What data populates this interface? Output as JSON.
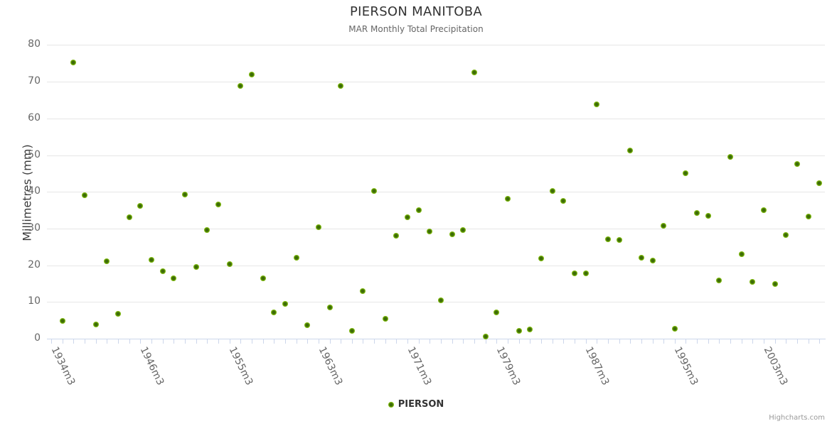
{
  "header": {
    "title": "PIERSON MANITOBA",
    "subtitle": "MAR Monthly Total Precipitation"
  },
  "legend": {
    "label": "PIERSON"
  },
  "credits": {
    "label": "Highcharts.com"
  },
  "colors": {
    "marker_outer": "#7bb60b",
    "marker_inner": "#3d6c08",
    "gridline": "#e6e6e6",
    "axis_line": "#ccd6eb",
    "title_text": "#333333",
    "subtitle_text": "#666666",
    "axis_label_text": "#666666",
    "yaxis_title_text": "#3c3c3c",
    "credits_text": "#999999"
  },
  "chart_data": {
    "type": "scatter",
    "title": "PIERSON MANITOBA",
    "subtitle": "MAR Monthly Total Precipitation",
    "xlabel": "",
    "ylabel": "Millimetres (mm)",
    "ylim": [
      0,
      80
    ],
    "ytick_step": 10,
    "grid": "horizontal",
    "legend_position": "bottom-center",
    "n_categories": 69,
    "x_tick_labels": [
      {
        "index": 0,
        "label": "1934m3"
      },
      {
        "index": 8,
        "label": "1946m3"
      },
      {
        "index": 16,
        "label": "1955m3"
      },
      {
        "index": 24,
        "label": "1963m3"
      },
      {
        "index": 32,
        "label": "1971m3"
      },
      {
        "index": 40,
        "label": "1979m3"
      },
      {
        "index": 48,
        "label": "1987m3"
      },
      {
        "index": 56,
        "label": "1995m3"
      },
      {
        "index": 64,
        "label": "2003m3"
      }
    ],
    "series": [
      {
        "name": "PIERSON",
        "color": "#7bb60b",
        "values": [
          4.9,
          75.2,
          39.0,
          3.9,
          21.0,
          6.7,
          33.0,
          36.2,
          21.5,
          18.4,
          16.4,
          39.3,
          19.6,
          29.6,
          36.6,
          20.4,
          68.9,
          71.9,
          16.4,
          7.2,
          9.4,
          22.0,
          3.6,
          30.4,
          8.5,
          68.9,
          2.1,
          13.0,
          40.2,
          5.4,
          28.0,
          33.1,
          35.0,
          29.2,
          10.4,
          28.4,
          29.6,
          72.5,
          0.6,
          7.1,
          38.2,
          2.1,
          2.5,
          21.8,
          40.3,
          37.5,
          17.8,
          17.9,
          63.9,
          27.0,
          26.9,
          51.2,
          22.1,
          21.3,
          30.8,
          2.7,
          45.0,
          34.3,
          33.4,
          15.8,
          49.6,
          23.0,
          15.5,
          35.0,
          14.9,
          28.2,
          47.5,
          33.2,
          42.4
        ]
      }
    ]
  }
}
